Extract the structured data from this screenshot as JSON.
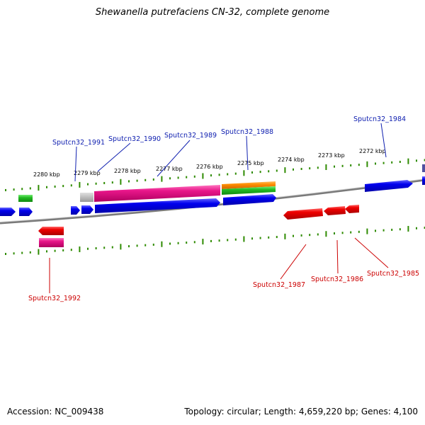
{
  "title": "Shewanella putrefaciens CN-32, complete genome",
  "footer": {
    "accession": "Accession: NC_009438",
    "summary": "Topology: circular; Length: 4,659,220 bp; Genes: 4,100"
  },
  "ruler_labels": [
    {
      "kbp": 2280,
      "text": "2280 kbp"
    },
    {
      "kbp": 2279,
      "text": "2279 kbp"
    },
    {
      "kbp": 2278,
      "text": "2278 kbp"
    },
    {
      "kbp": 2277,
      "text": "2277 kbp"
    },
    {
      "kbp": 2276,
      "text": "2276 kbp"
    },
    {
      "kbp": 2275,
      "text": "2275 kbp"
    },
    {
      "kbp": 2274,
      "text": "2274 kbp"
    },
    {
      "kbp": 2273,
      "text": "2273 kbp"
    },
    {
      "kbp": 2272,
      "text": "2272 kbp"
    }
  ],
  "gene_labels_forward": [
    {
      "id": "Sputcn32_1991",
      "text": "Sputcn32_1991"
    },
    {
      "id": "Sputcn32_1990",
      "text": "Sputcn32_1990"
    },
    {
      "id": "Sputcn32_1989",
      "text": "Sputcn32_1989"
    },
    {
      "id": "Sputcn32_1988",
      "text": "Sputcn32_1988"
    },
    {
      "id": "Sputcn32_1984",
      "text": "Sputcn32_1984"
    }
  ],
  "gene_labels_reverse": [
    {
      "id": "Sputcn32_1992",
      "text": "Sputcn32_1992"
    },
    {
      "id": "Sputcn32_1987",
      "text": "Sputcn32_1987"
    },
    {
      "id": "Sputcn32_1986",
      "text": "Sputcn32_1986"
    },
    {
      "id": "Sputcn32_1985",
      "text": "Sputcn32_1985"
    }
  ],
  "colors": {
    "forward_gene": "#0000dd",
    "reverse_gene": "#ee0000",
    "pink": "#e8168a",
    "green": "#22bb22",
    "orange": "#ff8c00",
    "grey": "#b8b8b8",
    "ruler": "#2e8b00",
    "backbone": "#777777",
    "forward_label": "#1020b0",
    "reverse_label": "#cc0000"
  }
}
